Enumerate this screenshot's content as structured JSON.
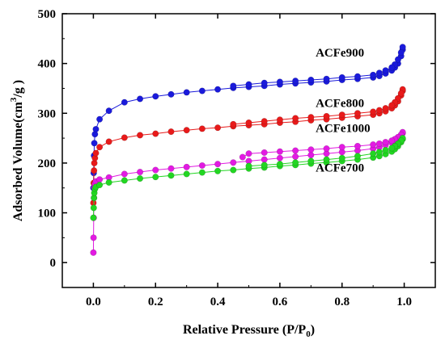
{
  "chart_data": {
    "type": "scatter",
    "title": "",
    "xlabel": "Relative Pressure (P/P",
    "xlabel_sub": "0",
    "xlabel_close": ")",
    "ylabel": "Adsorbed Volume(cm",
    "ylabel_sup": "3",
    "ylabel_close": "/g )",
    "xlim": [
      -0.1,
      1.1
    ],
    "ylim": [
      -50,
      500
    ],
    "xticks": [
      0.0,
      0.2,
      0.4,
      0.6,
      0.8,
      1.0
    ],
    "xtick_labels": [
      "0.0",
      "0.2",
      "0.4",
      "0.6",
      "0.8",
      "1.0"
    ],
    "yticks": [
      0,
      100,
      200,
      300,
      400,
      500
    ],
    "ytick_labels": [
      "0",
      "100",
      "200",
      "300",
      "400",
      "500"
    ],
    "grid": false,
    "series": [
      {
        "name": "ACFe900",
        "color": "#1a1adb",
        "adsorption": [
          [
            0.0,
            150
          ],
          [
            0.001,
            180
          ],
          [
            0.002,
            215
          ],
          [
            0.003,
            240
          ],
          [
            0.005,
            258
          ],
          [
            0.008,
            268
          ],
          [
            0.02,
            288
          ],
          [
            0.05,
            305
          ],
          [
            0.1,
            322
          ],
          [
            0.15,
            329
          ],
          [
            0.2,
            334
          ],
          [
            0.25,
            338
          ],
          [
            0.3,
            342
          ],
          [
            0.35,
            345
          ],
          [
            0.4,
            348
          ],
          [
            0.45,
            351
          ],
          [
            0.5,
            353
          ],
          [
            0.55,
            355
          ],
          [
            0.6,
            358
          ],
          [
            0.65,
            360
          ],
          [
            0.7,
            362
          ],
          [
            0.75,
            364
          ],
          [
            0.8,
            367
          ],
          [
            0.85,
            369
          ],
          [
            0.9,
            372
          ],
          [
            0.92,
            375
          ],
          [
            0.94,
            380
          ],
          [
            0.96,
            386
          ],
          [
            0.97,
            392
          ],
          [
            0.98,
            400
          ],
          [
            0.99,
            415
          ],
          [
            0.995,
            428
          ]
        ],
        "desorption": [
          [
            0.995,
            433
          ],
          [
            0.99,
            422
          ],
          [
            0.98,
            408
          ],
          [
            0.97,
            398
          ],
          [
            0.96,
            392
          ],
          [
            0.94,
            386
          ],
          [
            0.92,
            381
          ],
          [
            0.9,
            377
          ],
          [
            0.85,
            374
          ],
          [
            0.8,
            372
          ],
          [
            0.75,
            369
          ],
          [
            0.7,
            367
          ],
          [
            0.65,
            365
          ],
          [
            0.6,
            363
          ],
          [
            0.55,
            361
          ],
          [
            0.5,
            358
          ],
          [
            0.45,
            355
          ]
        ]
      },
      {
        "name": "ACFe800",
        "color": "#e81a1a",
        "adsorption": [
          [
            0.0,
            120
          ],
          [
            0.001,
            160
          ],
          [
            0.002,
            185
          ],
          [
            0.003,
            200
          ],
          [
            0.005,
            210
          ],
          [
            0.008,
            220
          ],
          [
            0.02,
            232
          ],
          [
            0.05,
            243
          ],
          [
            0.1,
            251
          ],
          [
            0.15,
            256
          ],
          [
            0.2,
            259
          ],
          [
            0.25,
            263
          ],
          [
            0.3,
            266
          ],
          [
            0.35,
            269
          ],
          [
            0.4,
            271
          ],
          [
            0.45,
            274
          ],
          [
            0.5,
            276
          ],
          [
            0.55,
            278
          ],
          [
            0.6,
            281
          ],
          [
            0.65,
            283
          ],
          [
            0.7,
            286
          ],
          [
            0.75,
            288
          ],
          [
            0.8,
            291
          ],
          [
            0.85,
            294
          ],
          [
            0.9,
            297
          ],
          [
            0.92,
            300
          ],
          [
            0.94,
            304
          ],
          [
            0.96,
            310
          ],
          [
            0.97,
            316
          ],
          [
            0.98,
            324
          ],
          [
            0.99,
            336
          ],
          [
            0.995,
            345
          ]
        ],
        "desorption": [
          [
            0.995,
            348
          ],
          [
            0.99,
            340
          ],
          [
            0.98,
            330
          ],
          [
            0.97,
            322
          ],
          [
            0.96,
            316
          ],
          [
            0.94,
            310
          ],
          [
            0.92,
            306
          ],
          [
            0.9,
            303
          ],
          [
            0.85,
            300
          ],
          [
            0.8,
            297
          ],
          [
            0.75,
            294
          ],
          [
            0.7,
            292
          ],
          [
            0.65,
            290
          ],
          [
            0.6,
            287
          ],
          [
            0.55,
            284
          ],
          [
            0.5,
            281
          ],
          [
            0.45,
            278
          ]
        ]
      },
      {
        "name": "ACFe1000",
        "color": "#e21ae2",
        "adsorption": [
          [
            0.0,
            20
          ],
          [
            0.0005,
            50
          ],
          [
            0.001,
            90
          ],
          [
            0.002,
            130
          ],
          [
            0.003,
            150
          ],
          [
            0.005,
            158
          ],
          [
            0.008,
            163
          ],
          [
            0.02,
            167
          ],
          [
            0.05,
            171
          ],
          [
            0.1,
            178
          ],
          [
            0.15,
            182
          ],
          [
            0.2,
            186
          ],
          [
            0.25,
            189
          ],
          [
            0.3,
            192
          ],
          [
            0.35,
            195
          ],
          [
            0.4,
            198
          ],
          [
            0.45,
            201
          ],
          [
            0.5,
            204
          ],
          [
            0.55,
            207
          ],
          [
            0.6,
            210
          ],
          [
            0.65,
            213
          ],
          [
            0.7,
            216
          ],
          [
            0.75,
            219
          ],
          [
            0.8,
            222
          ],
          [
            0.85,
            225
          ],
          [
            0.9,
            229
          ],
          [
            0.92,
            232
          ],
          [
            0.94,
            236
          ],
          [
            0.96,
            241
          ],
          [
            0.97,
            245
          ],
          [
            0.98,
            250
          ],
          [
            0.99,
            256
          ],
          [
            0.995,
            260
          ]
        ],
        "desorption": [
          [
            0.995,
            262
          ],
          [
            0.99,
            257
          ],
          [
            0.98,
            252
          ],
          [
            0.97,
            248
          ],
          [
            0.96,
            245
          ],
          [
            0.94,
            242
          ],
          [
            0.92,
            239
          ],
          [
            0.9,
            237
          ],
          [
            0.85,
            234
          ],
          [
            0.8,
            232
          ],
          [
            0.75,
            229
          ],
          [
            0.7,
            227
          ],
          [
            0.65,
            225
          ],
          [
            0.6,
            223
          ],
          [
            0.55,
            221
          ],
          [
            0.5,
            219
          ],
          [
            0.48,
            212
          ]
        ]
      },
      {
        "name": "ACFe700",
        "color": "#22d622",
        "adsorption": [
          [
            0.0,
            90
          ],
          [
            0.001,
            110
          ],
          [
            0.002,
            130
          ],
          [
            0.003,
            140
          ],
          [
            0.005,
            148
          ],
          [
            0.008,
            152
          ],
          [
            0.02,
            156
          ],
          [
            0.05,
            161
          ],
          [
            0.1,
            165
          ],
          [
            0.15,
            169
          ],
          [
            0.2,
            172
          ],
          [
            0.25,
            175
          ],
          [
            0.3,
            178
          ],
          [
            0.35,
            181
          ],
          [
            0.4,
            184
          ],
          [
            0.45,
            186
          ],
          [
            0.5,
            189
          ],
          [
            0.55,
            191
          ],
          [
            0.6,
            194
          ],
          [
            0.65,
            196
          ],
          [
            0.7,
            199
          ],
          [
            0.75,
            201
          ],
          [
            0.8,
            204
          ],
          [
            0.85,
            207
          ],
          [
            0.9,
            211
          ],
          [
            0.92,
            214
          ],
          [
            0.94,
            218
          ],
          [
            0.96,
            223
          ],
          [
            0.97,
            228
          ],
          [
            0.98,
            234
          ],
          [
            0.99,
            242
          ],
          [
            0.995,
            248
          ]
        ],
        "desorption": [
          [
            0.995,
            250
          ],
          [
            0.99,
            245
          ],
          [
            0.98,
            239
          ],
          [
            0.97,
            234
          ],
          [
            0.96,
            230
          ],
          [
            0.94,
            226
          ],
          [
            0.92,
            222
          ],
          [
            0.9,
            219
          ],
          [
            0.85,
            214
          ],
          [
            0.8,
            210
          ],
          [
            0.75,
            207
          ],
          [
            0.7,
            204
          ],
          [
            0.65,
            201
          ],
          [
            0.6,
            198
          ],
          [
            0.55,
            196
          ],
          [
            0.5,
            194
          ]
        ]
      }
    ],
    "annotations": [
      {
        "text": "ACFe900",
        "x": 0.715,
        "y": 414
      },
      {
        "text": "ACFe800",
        "x": 0.715,
        "y": 313
      },
      {
        "text": "ACFe1000",
        "x": 0.715,
        "y": 262
      },
      {
        "text": "ACFe700",
        "x": 0.715,
        "y": 183
      }
    ]
  }
}
